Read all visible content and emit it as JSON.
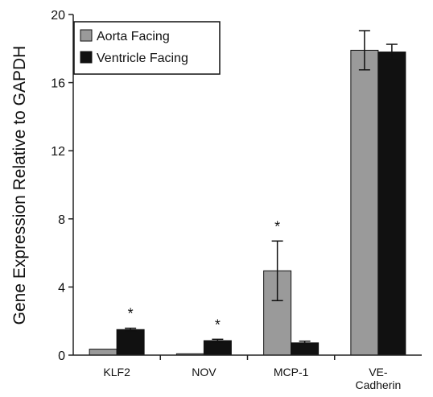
{
  "chart_data": {
    "type": "bar",
    "title": "",
    "xlabel": "",
    "ylabel": "Gene Expression Relative to GAPDH",
    "ylim": [
      0,
      20
    ],
    "yticks": [
      0,
      4,
      8,
      12,
      16,
      20
    ],
    "grid": false,
    "legend_position": "top-left",
    "categories": [
      [
        "KLF2"
      ],
      [
        "NOV"
      ],
      [
        "MCP-1"
      ],
      [
        "VE-",
        "Cadherin"
      ]
    ],
    "series": [
      {
        "name": "Aorta Facing",
        "color": "#9a9a9a",
        "values": [
          0.35,
          0.08,
          4.95,
          17.9
        ],
        "errors": [
          0,
          0,
          1.75,
          1.15
        ]
      },
      {
        "name": "Ventricle Facing",
        "color": "#111111",
        "values": [
          1.5,
          0.85,
          0.72,
          17.8
        ],
        "errors": [
          0.08,
          0.08,
          0.1,
          0.45
        ]
      }
    ],
    "significance_marker": "*",
    "significance": [
      {
        "category": 0,
        "series": 1
      },
      {
        "category": 1,
        "series": 1
      },
      {
        "category": 2,
        "series": 0
      }
    ]
  }
}
